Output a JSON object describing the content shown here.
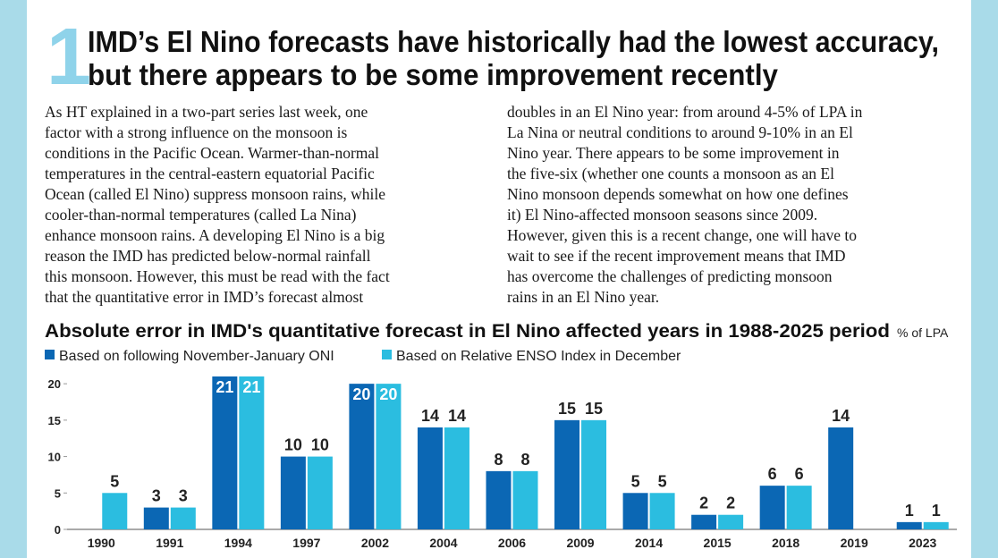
{
  "section_number": "1",
  "title_lines": [
    "IMD’s El Nino forecasts have historically had the lowest accuracy,",
    "but there appears to be some improvement recently"
  ],
  "article": {
    "left_column": [
      "As HT explained in a two-part series last week, one",
      "factor with a strong influence on the monsoon is",
      "conditions in the Pacific Ocean. Warmer-than-normal",
      "temperatures in the central-eastern equatorial Pacific",
      "Ocean (called El Nino) suppress monsoon rains, while",
      "cooler-than-normal temperatures (called La Nina)",
      "enhance monsoon rains. A developing El Nino is a big",
      "reason the IMD has predicted below-normal rainfall",
      "this monsoon. However, this must be read with the fact",
      "that the quantitative error in IMD’s forecast almost"
    ],
    "right_column": [
      "doubles in an El Nino year: from around 4-5% of LPA in",
      "La Nina or neutral conditions to around 9-10% in an El",
      "Nino year. There appears to be some improvement in",
      "the five-six (whether one counts a monsoon as an El",
      "Nino monsoon depends somewhat on how one defines",
      "it) El Nino-affected monsoon seasons since 2009.",
      "However, given this is a recent change, one will have to",
      "wait to see if the recent improvement means that IMD",
      "has overcome the challenges of predicting monsoon",
      "rains in an El Nino year."
    ]
  },
  "chart_data": {
    "type": "bar",
    "title": "Absolute error in IMD's quantitative forecast in El Nino affected years in 1988-2025 period",
    "unit": "% of LPA",
    "categories": [
      "1990",
      "1991",
      "1994",
      "1997",
      "2002",
      "2004",
      "2006",
      "2009",
      "2014",
      "2015",
      "2018",
      "2019",
      "2023"
    ],
    "series": [
      {
        "name": "Based on following November-January ONI",
        "color": "#0b67b4",
        "values": [
          null,
          3,
          21,
          10,
          20,
          14,
          8,
          15,
          5,
          2,
          6,
          14,
          1
        ]
      },
      {
        "name": "Based on Relative ENSO Index in December",
        "color": "#2bbde0",
        "values": [
          5,
          3,
          21,
          10,
          20,
          14,
          8,
          15,
          5,
          2,
          6,
          null,
          1
        ]
      }
    ],
    "ylim": [
      0,
      21
    ],
    "yticks": [
      0,
      5,
      10,
      15,
      20
    ],
    "grid": false
  }
}
